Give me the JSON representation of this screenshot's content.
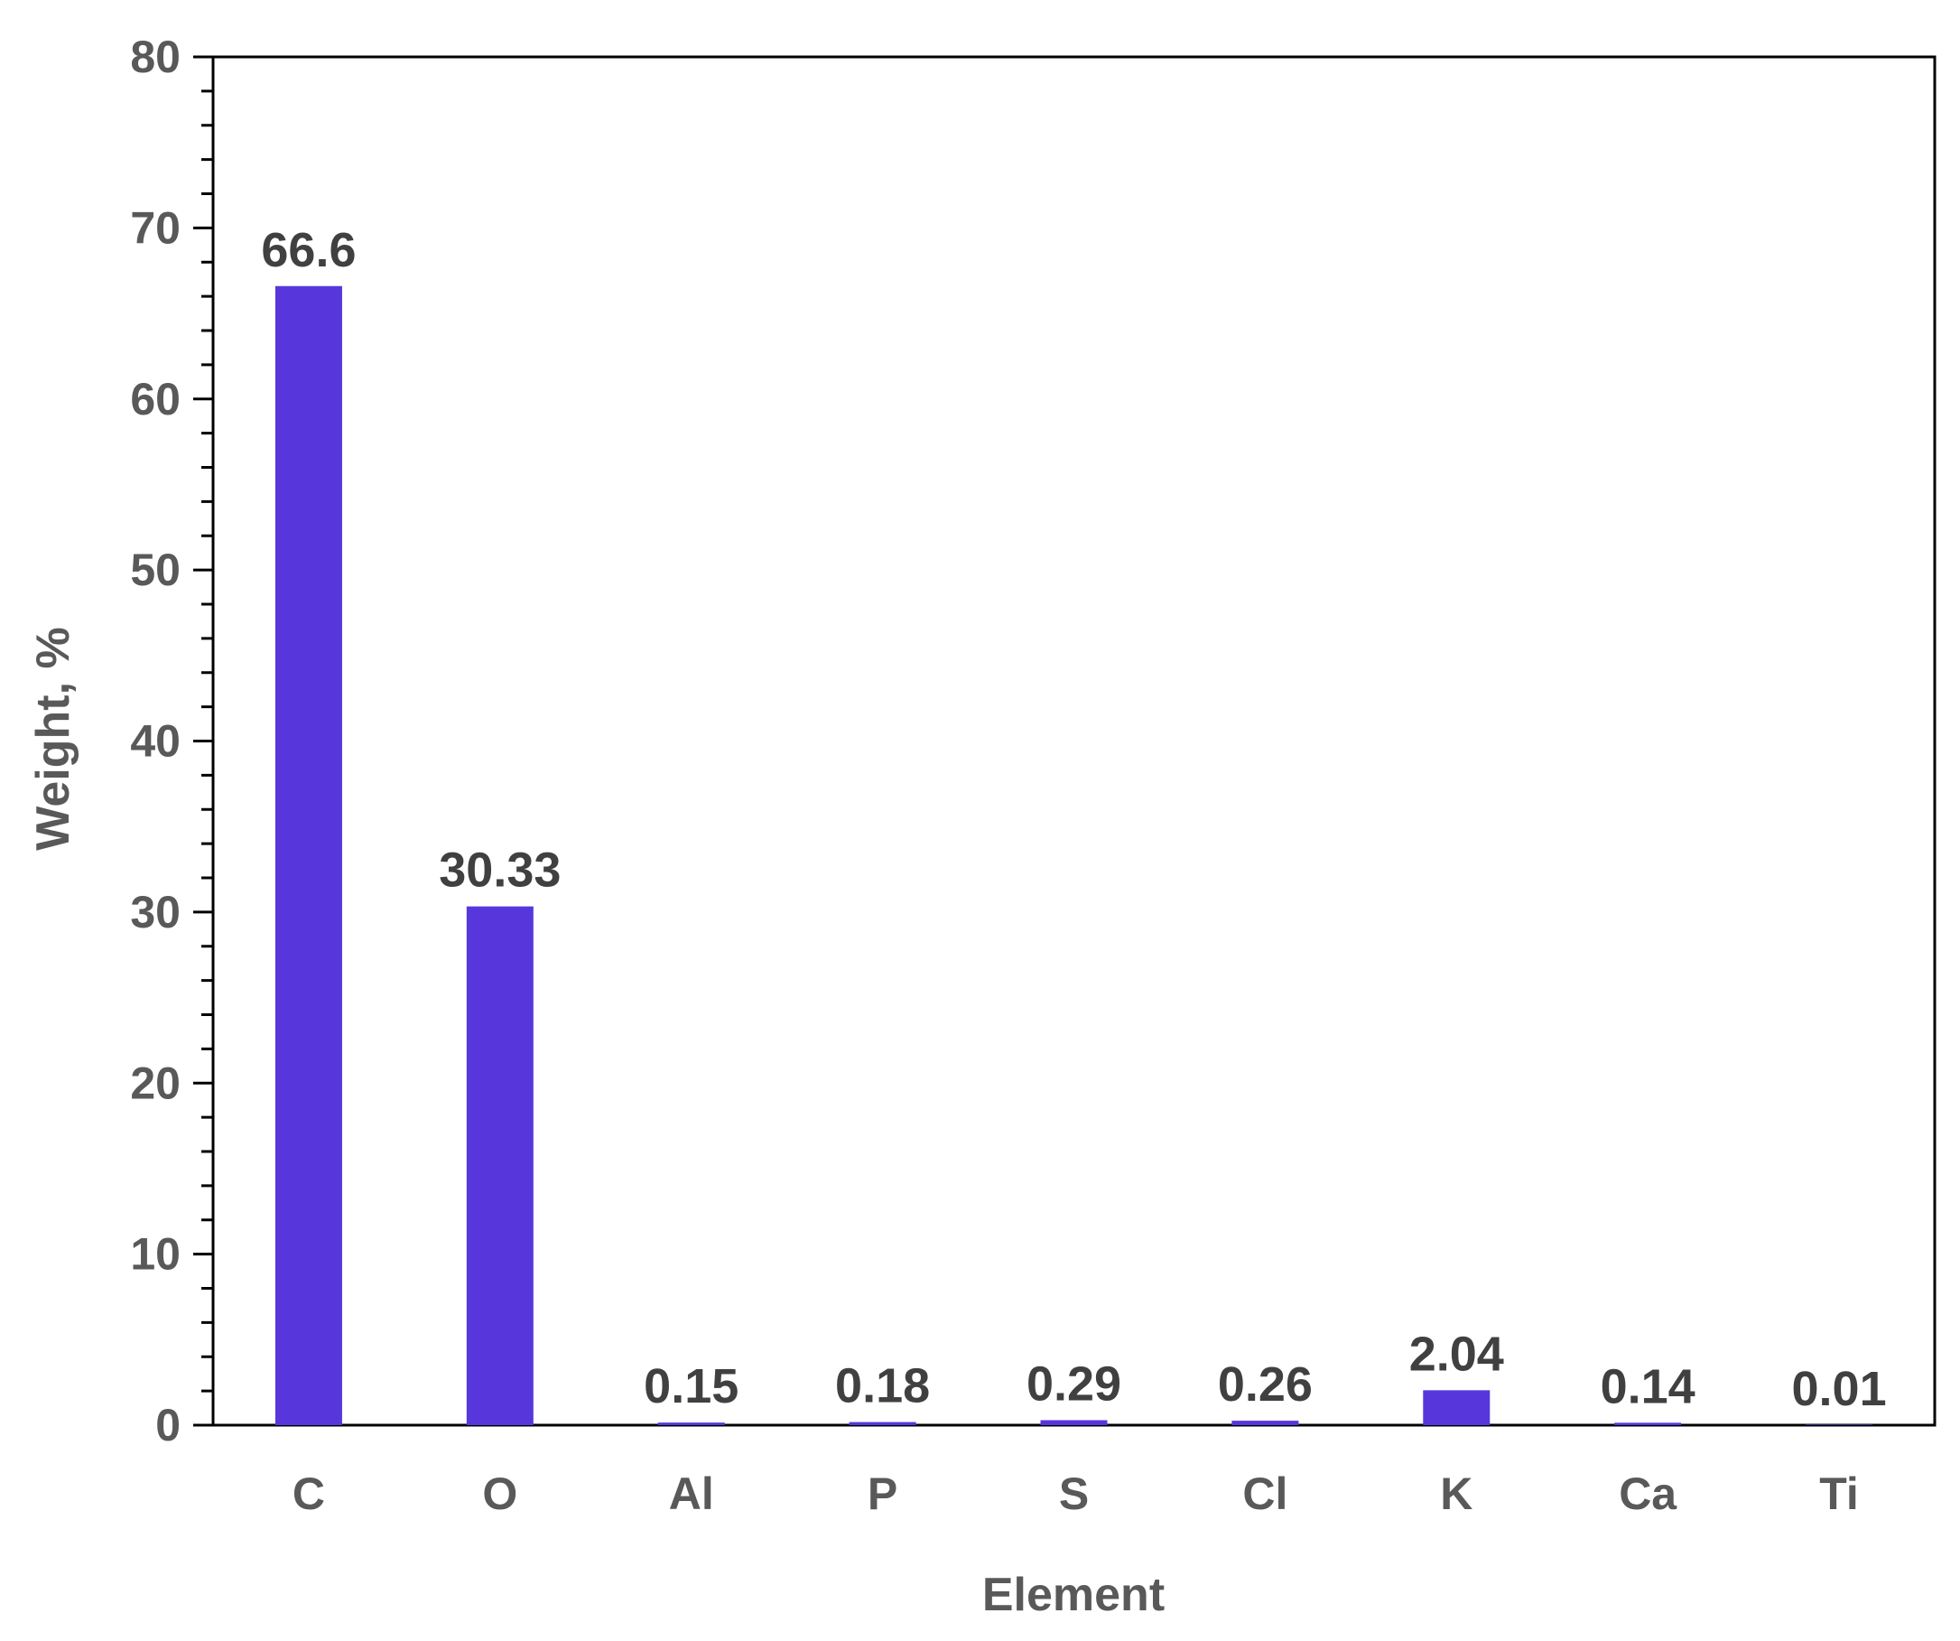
{
  "chart_data": {
    "type": "bar",
    "title": "",
    "xlabel": "Element",
    "ylabel": "Weight, %",
    "ylim": [
      0,
      80
    ],
    "y_major_ticks": [
      0,
      10,
      20,
      30,
      40,
      50,
      60,
      70,
      80
    ],
    "y_minor_step": 2,
    "grid": false,
    "legend": "none",
    "bar_color": "#5737dc",
    "axis_color": "#000000",
    "label_color": "#595959",
    "data_label_color": "#404040",
    "categories": [
      "C",
      "O",
      "Al",
      "P",
      "S",
      "Cl",
      "K",
      "Ca",
      "Ti"
    ],
    "values": [
      66.6,
      30.33,
      0.15,
      0.18,
      0.29,
      0.26,
      2.04,
      0.14,
      0.01
    ],
    "data_labels": [
      "66.6",
      "30.33",
      "0.15",
      "0.18",
      "0.29",
      "0.26",
      "2.04",
      "0.14",
      "0.01"
    ]
  }
}
